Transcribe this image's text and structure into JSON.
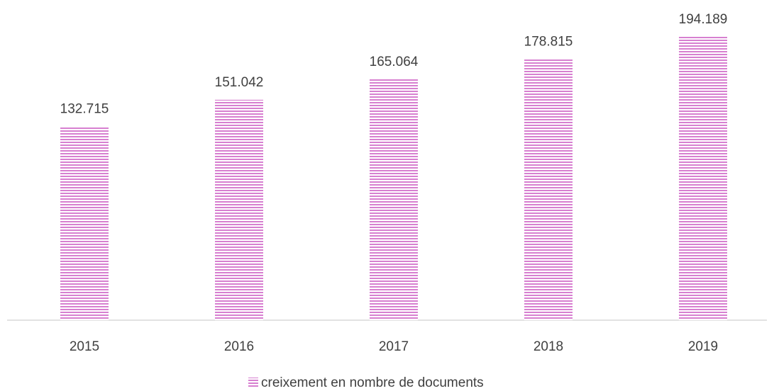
{
  "chart_data": {
    "type": "bar",
    "categories": [
      "2015",
      "2016",
      "2017",
      "2018",
      "2019"
    ],
    "series": [
      {
        "name": "creixement en nombre de documents",
        "color": "#d77fd0",
        "values": [
          132715,
          151042,
          165064,
          178815,
          194189
        ],
        "value_labels": [
          "132.715",
          "151.042",
          "165.064",
          "178.815",
          "194.189"
        ]
      }
    ]
  }
}
